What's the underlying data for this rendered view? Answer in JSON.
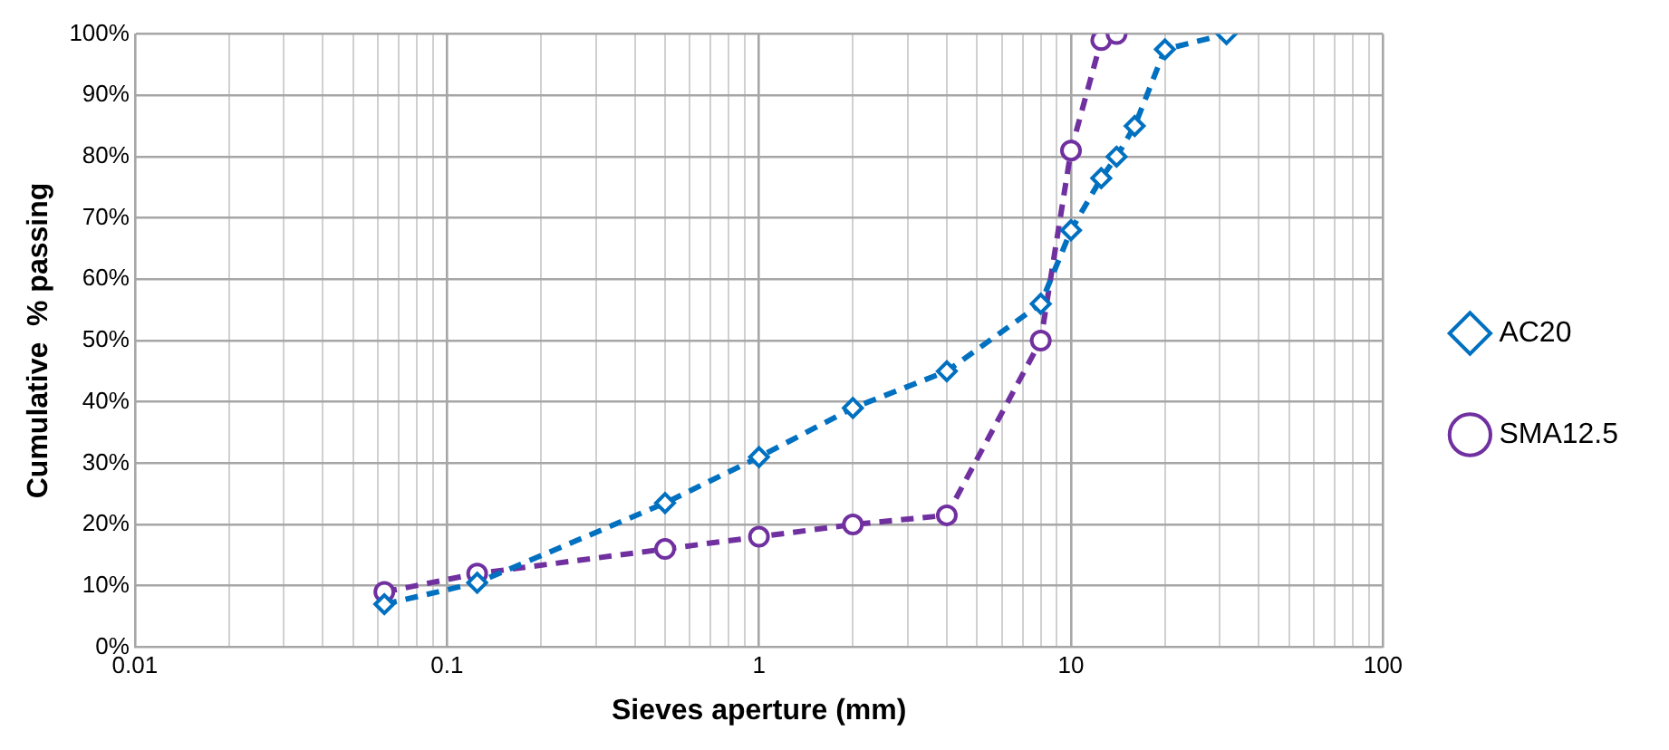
{
  "chart_data": {
    "type": "line",
    "xlabel": "Sieves aperture (mm)",
    "ylabel": "Cumulative  % passing",
    "log": "x",
    "grid": true,
    "legend": "right",
    "line_style": "dashed",
    "xlim": [
      0.01,
      100
    ],
    "ylim": [
      0,
      100
    ],
    "xticks": [
      0.01,
      {
        "value": 0.02,
        "label": null
      },
      {
        "value": 0.03,
        "label": null
      },
      {
        "value": 0.04,
        "label": null
      },
      {
        "value": 0.05,
        "label": null
      },
      {
        "value": 0.06,
        "label": null
      },
      {
        "value": 0.07,
        "label": null
      },
      {
        "value": 0.08,
        "label": null
      },
      {
        "value": 0.09,
        "label": null
      },
      0.1,
      {
        "value": 0.2,
        "label": null
      },
      {
        "value": 0.3,
        "label": null
      },
      {
        "value": 0.4,
        "label": null
      },
      {
        "value": 0.5,
        "label": null
      },
      {
        "value": 0.6,
        "label": null
      },
      {
        "value": 0.7,
        "label": null
      },
      {
        "value": 0.8,
        "label": null
      },
      {
        "value": 0.9,
        "label": null
      },
      1,
      {
        "value": 2,
        "label": null
      },
      {
        "value": 3,
        "label": null
      },
      {
        "value": 4,
        "label": null
      },
      {
        "value": 5,
        "label": null
      },
      {
        "value": 6,
        "label": null
      },
      {
        "value": 7,
        "label": null
      },
      {
        "value": 8,
        "label": null
      },
      {
        "value": 9,
        "label": null
      },
      10,
      {
        "value": 20,
        "label": null
      },
      {
        "value": 30,
        "label": null
      },
      {
        "value": 40,
        "label": null
      },
      {
        "value": 50,
        "label": null
      },
      {
        "value": 60,
        "label": null
      },
      {
        "value": 70,
        "label": null
      },
      {
        "value": 80,
        "label": null
      },
      {
        "value": 90,
        "label": null
      },
      100
    ],
    "yticks": [
      {
        "value": 0,
        "label": "0%"
      },
      {
        "value": 10,
        "label": "10%"
      },
      {
        "value": 20,
        "label": "20%"
      },
      {
        "value": 30,
        "label": "30%"
      },
      {
        "value": 40,
        "label": "40%"
      },
      {
        "value": 50,
        "label": "50%"
      },
      {
        "value": 60,
        "label": "60%"
      },
      {
        "value": 70,
        "label": "70%"
      },
      {
        "value": 80,
        "label": "80%"
      },
      {
        "value": 90,
        "label": "90%"
      },
      {
        "value": 100,
        "label": "100%"
      }
    ],
    "series": [
      {
        "name": "AC20",
        "color": "#0070c0",
        "marker": "diamond",
        "x": [
          0.063,
          0.125,
          0.5,
          1,
          2,
          4,
          8,
          10,
          12.5,
          14,
          16,
          20,
          31.5
        ],
        "values": [
          7,
          10.5,
          23.5,
          31,
          39,
          45,
          56,
          68,
          76.5,
          80,
          85,
          97.5,
          100
        ]
      },
      {
        "name": "SMA12.5",
        "color": "#7030a0",
        "marker": "circle",
        "x": [
          0.063,
          0.125,
          0.5,
          1,
          2,
          4,
          8,
          10,
          12.5,
          14
        ],
        "values": [
          9,
          12,
          16,
          18,
          20,
          21.5,
          50,
          81,
          99,
          100
        ]
      }
    ]
  }
}
